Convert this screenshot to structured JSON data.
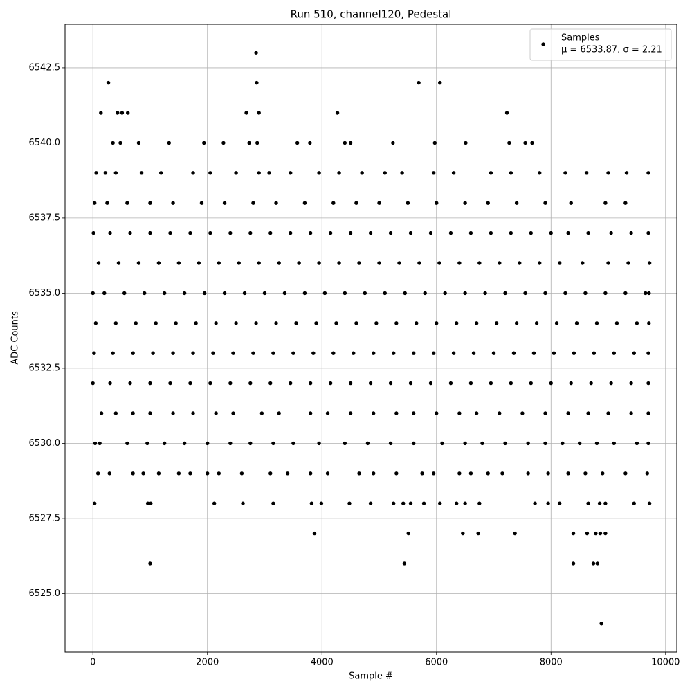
{
  "chart_data": {
    "type": "scatter",
    "title": "Run 510, channel120, Pedestal",
    "x_label": "Sample #",
    "y_label": "ADC Counts",
    "annotation": "μ = 6533.87, σ = 2.21",
    "xlim": [
      -486,
      10196
    ],
    "ylim": [
      6523.05,
      6543.95
    ],
    "xticks": [
      0,
      2000,
      4000,
      6000,
      8000,
      10000
    ],
    "yticks": [
      {
        "value": 6525,
        "label": "6525.0"
      },
      {
        "value": 6527.5,
        "label": "6527.5"
      },
      {
        "value": 6530,
        "label": "6530.0"
      },
      {
        "value": 6532.5,
        "label": "6532.5"
      },
      {
        "value": 6535,
        "label": "6535.0"
      },
      {
        "value": 6537.5,
        "label": "6537.5"
      },
      {
        "value": 6540,
        "label": "6540.0"
      },
      {
        "value": 6542.5,
        "label": "6542.5"
      }
    ],
    "grid": true,
    "legend": "upper right",
    "x": [
      2850,
      270,
      2860,
      5690,
      6060,
      140,
      430,
      510,
      610,
      2680,
      2900,
      4270,
      7230,
      350,
      480,
      800,
      1330,
      1940,
      2280,
      2730,
      2870,
      3570,
      3790,
      4400,
      4500,
      5240,
      5970,
      6510,
      7270,
      7550,
      7670,
      60,
      220,
      400,
      850,
      1190,
      1750,
      2050,
      2500,
      2900,
      3080,
      3450,
      3950,
      4300,
      4700,
      5100,
      5400,
      5950,
      6300,
      6950,
      7300,
      7800,
      8250,
      8620,
      9000,
      9320,
      9700,
      30,
      250,
      600,
      1000,
      1400,
      1900,
      2300,
      2800,
      3200,
      3700,
      4200,
      4600,
      5000,
      5500,
      6000,
      6500,
      6900,
      7400,
      7900,
      8350,
      8950,
      9300,
      10,
      300,
      650,
      1000,
      1350,
      1700,
      2050,
      2400,
      2750,
      3100,
      3450,
      3800,
      4150,
      4500,
      4850,
      5200,
      5550,
      5900,
      6250,
      6600,
      6950,
      7300,
      7650,
      8000,
      8300,
      8650,
      9050,
      9400,
      9700,
      100,
      450,
      800,
      1150,
      1500,
      1850,
      2200,
      2550,
      2900,
      3250,
      3600,
      3950,
      4300,
      4650,
      5000,
      5350,
      5700,
      6050,
      6400,
      6750,
      7100,
      7450,
      7800,
      8150,
      8550,
      9000,
      9350,
      9720,
      0,
      200,
      550,
      900,
      1250,
      1600,
      1950,
      2300,
      2650,
      3000,
      3350,
      3700,
      4050,
      4400,
      4750,
      5100,
      5450,
      5800,
      6150,
      6500,
      6850,
      7200,
      7550,
      7900,
      8250,
      8600,
      8950,
      9300,
      9650,
      9710,
      50,
      400,
      750,
      1100,
      1450,
      1800,
      2150,
      2500,
      2850,
      3200,
      3550,
      3900,
      4250,
      4600,
      4950,
      5300,
      5650,
      6000,
      6350,
      6700,
      7050,
      7400,
      7750,
      8100,
      8450,
      8800,
      9150,
      9500,
      9710,
      20,
      350,
      700,
      1050,
      1400,
      1750,
      2100,
      2450,
      2800,
      3150,
      3500,
      3850,
      4200,
      4550,
      4900,
      5250,
      5600,
      5950,
      6300,
      6650,
      7000,
      7350,
      7700,
      8050,
      8400,
      8750,
      9100,
      9450,
      9700,
      0,
      300,
      650,
      1000,
      1350,
      1700,
      2050,
      2400,
      2750,
      3100,
      3450,
      3800,
      4150,
      4500,
      4850,
      5200,
      5550,
      5900,
      6250,
      6600,
      6950,
      7300,
      7650,
      8000,
      8350,
      8700,
      9050,
      9400,
      9700,
      150,
      400,
      700,
      1000,
      1400,
      1750,
      2150,
      2450,
      2950,
      3250,
      3800,
      4100,
      4500,
      4900,
      5300,
      5600,
      6000,
      6400,
      6700,
      7100,
      7500,
      7900,
      8300,
      8650,
      9000,
      9400,
      9700,
      40,
      120,
      600,
      950,
      1250,
      1600,
      2000,
      2400,
      2750,
      3150,
      3500,
      3950,
      4400,
      4800,
      5200,
      5600,
      6100,
      6500,
      6800,
      7200,
      7600,
      7900,
      8200,
      8500,
      8800,
      9100,
      9500,
      9700,
      90,
      290,
      700,
      880,
      1150,
      1500,
      1700,
      2000,
      2200,
      2600,
      3100,
      3400,
      3800,
      4100,
      4650,
      4900,
      5300,
      5750,
      5950,
      6400,
      6600,
      6900,
      7150,
      7600,
      7950,
      8300,
      8600,
      8900,
      9300,
      9680,
      30,
      960,
      1010,
      2120,
      2620,
      3150,
      3820,
      3990,
      4480,
      4850,
      5250,
      5420,
      5550,
      5780,
      6060,
      6350,
      6500,
      6750,
      7720,
      7950,
      8150,
      8650,
      8850,
      8950,
      9450,
      9720,
      3870,
      5510,
      6460,
      6730,
      7370,
      8390,
      8630,
      8780,
      8860,
      8950,
      1000,
      5440,
      8390,
      8740,
      8810,
      8880
    ],
    "series": [
      {
        "name": "Samples",
        "color": "#000000",
        "values": [
          6543,
          6542,
          6542,
          6542,
          6542,
          6541,
          6541,
          6541,
          6541,
          6541,
          6541,
          6541,
          6541,
          6540,
          6540,
          6540,
          6540,
          6540,
          6540,
          6540,
          6540,
          6540,
          6540,
          6540,
          6540,
          6540,
          6540,
          6540,
          6540,
          6540,
          6540,
          6539,
          6539,
          6539,
          6539,
          6539,
          6539,
          6539,
          6539,
          6539,
          6539,
          6539,
          6539,
          6539,
          6539,
          6539,
          6539,
          6539,
          6539,
          6539,
          6539,
          6539,
          6539,
          6539,
          6539,
          6539,
          6539,
          6538,
          6538,
          6538,
          6538,
          6538,
          6538,
          6538,
          6538,
          6538,
          6538,
          6538,
          6538,
          6538,
          6538,
          6538,
          6538,
          6538,
          6538,
          6538,
          6538,
          6538,
          6538,
          6537,
          6537,
          6537,
          6537,
          6537,
          6537,
          6537,
          6537,
          6537,
          6537,
          6537,
          6537,
          6537,
          6537,
          6537,
          6537,
          6537,
          6537,
          6537,
          6537,
          6537,
          6537,
          6537,
          6537,
          6537,
          6537,
          6537,
          6537,
          6537,
          6536,
          6536,
          6536,
          6536,
          6536,
          6536,
          6536,
          6536,
          6536,
          6536,
          6536,
          6536,
          6536,
          6536,
          6536,
          6536,
          6536,
          6536,
          6536,
          6536,
          6536,
          6536,
          6536,
          6536,
          6536,
          6536,
          6536,
          6536,
          6535,
          6535,
          6535,
          6535,
          6535,
          6535,
          6535,
          6535,
          6535,
          6535,
          6535,
          6535,
          6535,
          6535,
          6535,
          6535,
          6535,
          6535,
          6535,
          6535,
          6535,
          6535,
          6535,
          6535,
          6535,
          6535,
          6535,
          6535,
          6535,
          6535,
          6534,
          6534,
          6534,
          6534,
          6534,
          6534,
          6534,
          6534,
          6534,
          6534,
          6534,
          6534,
          6534,
          6534,
          6534,
          6534,
          6534,
          6534,
          6534,
          6534,
          6534,
          6534,
          6534,
          6534,
          6534,
          6534,
          6534,
          6534,
          6534,
          6533,
          6533,
          6533,
          6533,
          6533,
          6533,
          6533,
          6533,
          6533,
          6533,
          6533,
          6533,
          6533,
          6533,
          6533,
          6533,
          6533,
          6533,
          6533,
          6533,
          6533,
          6533,
          6533,
          6533,
          6533,
          6533,
          6533,
          6533,
          6533,
          6532,
          6532,
          6532,
          6532,
          6532,
          6532,
          6532,
          6532,
          6532,
          6532,
          6532,
          6532,
          6532,
          6532,
          6532,
          6532,
          6532,
          6532,
          6532,
          6532,
          6532,
          6532,
          6532,
          6532,
          6532,
          6532,
          6532,
          6532,
          6532,
          6531,
          6531,
          6531,
          6531,
          6531,
          6531,
          6531,
          6531,
          6531,
          6531,
          6531,
          6531,
          6531,
          6531,
          6531,
          6531,
          6531,
          6531,
          6531,
          6531,
          6531,
          6531,
          6531,
          6531,
          6531,
          6531,
          6531,
          6530,
          6530,
          6530,
          6530,
          6530,
          6530,
          6530,
          6530,
          6530,
          6530,
          6530,
          6530,
          6530,
          6530,
          6530,
          6530,
          6530,
          6530,
          6530,
          6530,
          6530,
          6530,
          6530,
          6530,
          6530,
          6530,
          6530,
          6530,
          6529,
          6529,
          6529,
          6529,
          6529,
          6529,
          6529,
          6529,
          6529,
          6529,
          6529,
          6529,
          6529,
          6529,
          6529,
          6529,
          6529,
          6529,
          6529,
          6529,
          6529,
          6529,
          6529,
          6529,
          6529,
          6529,
          6529,
          6529,
          6529,
          6529,
          6528,
          6528,
          6528,
          6528,
          6528,
          6528,
          6528,
          6528,
          6528,
          6528,
          6528,
          6528,
          6528,
          6528,
          6528,
          6528,
          6528,
          6528,
          6528,
          6528,
          6528,
          6528,
          6528,
          6528,
          6528,
          6528,
          6527,
          6527,
          6527,
          6527,
          6527,
          6527,
          6527,
          6527,
          6527,
          6527,
          6526,
          6526,
          6526,
          6526,
          6526,
          6524
        ]
      }
    ]
  }
}
